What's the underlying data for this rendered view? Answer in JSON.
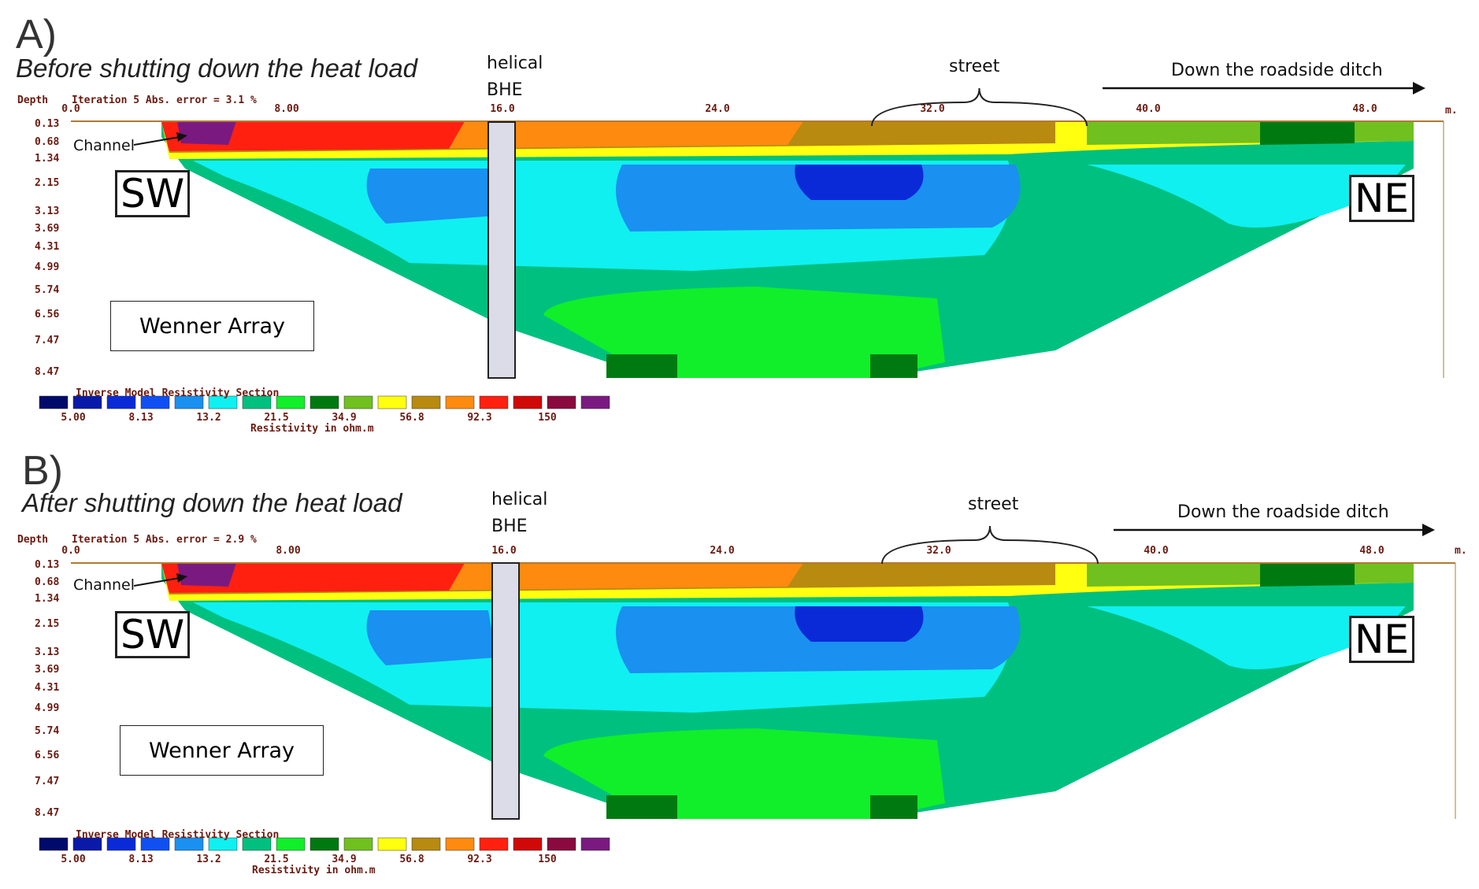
{
  "colors": {
    "scale": [
      "#000a6b",
      "#0a1aa8",
      "#0a2ad8",
      "#1050f2",
      "#1a90f0",
      "#10f0f0",
      "#00c080",
      "#10ef2a",
      "#007a10",
      "#70c020",
      "#ffff10",
      "#b88a10",
      "#ff8a10",
      "#ff2010",
      "#d00808",
      "#8a0a40",
      "#7a1a80"
    ],
    "borehole": "#dcdce8"
  },
  "common": {
    "helical_label": "helical",
    "bhe_label": "BHE",
    "street_label": "street",
    "ditch_label": "Down the roadside ditch",
    "channel_label": "Channel",
    "sw_label": "SW",
    "ne_label": "NE",
    "wenner_label": "Wenner Array",
    "depth_label": "Depth",
    "unit_label": "m.",
    "depth_ticks": [
      "0.13",
      "0.68",
      "1.34",
      "2.15",
      "3.13",
      "3.69",
      "4.31",
      "4.99",
      "5.74",
      "6.56",
      "7.47",
      "8.47"
    ],
    "x_ticks": [
      "0.0",
      "8.00",
      "16.0",
      "24.0",
      "32.0",
      "40.0",
      "48.0"
    ],
    "section_title": "Inverse Model Resistivity Section",
    "scale_values": [
      "5.00",
      "8.13",
      "13.2",
      "21.5",
      "34.9",
      "56.8",
      "92.3",
      "150"
    ],
    "scale_unit": "Resistivity in ohm.m"
  },
  "panels": [
    {
      "label": "A)",
      "title": "Before shutting down the heat load",
      "iteration_text": "Iteration 5 Abs. error = 3.1 %"
    },
    {
      "label": "B)",
      "title": "After shutting down the heat load",
      "iteration_text": "Iteration 5 Abs. error = 2.9 %"
    }
  ]
}
